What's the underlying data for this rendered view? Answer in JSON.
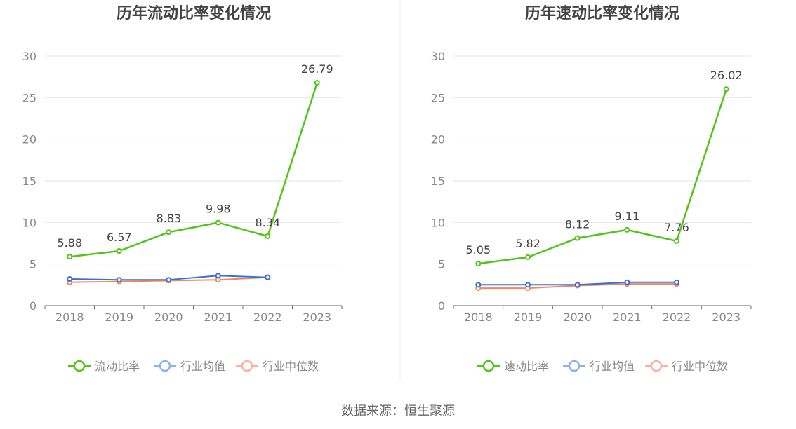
{
  "footer": {
    "source_text": "数据来源：恒生聚源"
  },
  "colors": {
    "main": "#52c41a",
    "industry_avg": "#3b6fd4",
    "industry_median": "#f08a5d",
    "legend_avg": "#8fb0ee",
    "legend_median": "#f6b3a0",
    "grid": "#e6e6e6",
    "axis": "#666666",
    "tick_text": "#888888",
    "title_text": "#444444",
    "label_text": "#444444",
    "divider": "#eeeeee"
  },
  "chart_data": [
    {
      "type": "line",
      "title": "历年流动比率变化情况",
      "categories": [
        "2018",
        "2019",
        "2020",
        "2021",
        "2022",
        "2023"
      ],
      "ylim": [
        0,
        30
      ],
      "yticks": [
        0,
        5,
        10,
        15,
        20,
        25,
        30
      ],
      "grid": true,
      "legend_position": "bottom",
      "series": [
        {
          "name": "流动比率",
          "values": [
            5.88,
            6.57,
            8.83,
            9.98,
            8.34,
            26.79
          ],
          "labels": [
            "5.88",
            "6.57",
            "8.83",
            "9.98",
            "8.34",
            "26.79"
          ]
        },
        {
          "name": "行业均值",
          "values": [
            3.2,
            3.1,
            3.1,
            3.6,
            3.4,
            null
          ]
        },
        {
          "name": "行业中位数",
          "values": [
            2.8,
            2.9,
            3.0,
            3.1,
            3.4,
            null
          ]
        }
      ]
    },
    {
      "type": "line",
      "title": "历年速动比率变化情况",
      "categories": [
        "2018",
        "2019",
        "2020",
        "2021",
        "2022",
        "2023"
      ],
      "ylim": [
        0,
        30
      ],
      "yticks": [
        0,
        5,
        10,
        15,
        20,
        25,
        30
      ],
      "grid": true,
      "legend_position": "bottom",
      "series": [
        {
          "name": "速动比率",
          "values": [
            5.05,
            5.82,
            8.12,
            9.11,
            7.76,
            26.02
          ],
          "labels": [
            "5.05",
            "5.82",
            "8.12",
            "9.11",
            "7.76",
            "26.02"
          ]
        },
        {
          "name": "行业均值",
          "values": [
            2.5,
            2.5,
            2.5,
            2.8,
            2.8,
            null
          ]
        },
        {
          "name": "行业中位数",
          "values": [
            2.1,
            2.1,
            2.4,
            2.6,
            2.6,
            null
          ]
        }
      ]
    }
  ]
}
